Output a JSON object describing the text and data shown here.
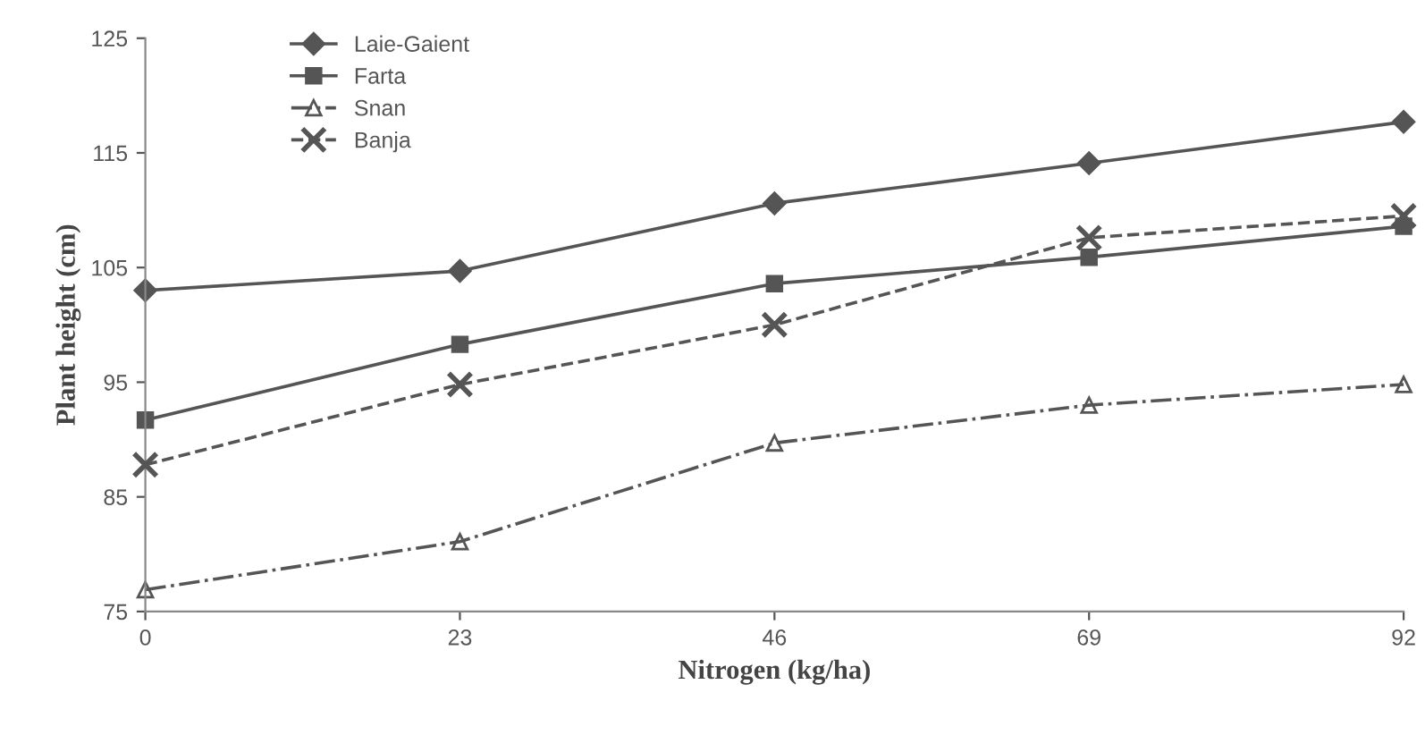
{
  "chart_data": {
    "type": "line",
    "xlabel": "Nitrogen (kg/ha)",
    "ylabel": "Plant height (cm)",
    "x": [
      0,
      23,
      46,
      69,
      92
    ],
    "series": [
      {
        "name": "Laie-Gaient",
        "color": "#555555",
        "marker": "diamond",
        "line_style": "solid",
        "values": [
          103,
          104.7,
          110.6,
          114.1,
          117.7
        ]
      },
      {
        "name": "Farta",
        "color": "#555555",
        "marker": "square",
        "line_style": "solid",
        "values": [
          91.7,
          98.3,
          103.6,
          105.9,
          108.6
        ]
      },
      {
        "name": "Snan",
        "color": "#555555",
        "marker": "triangle",
        "line_style": "dashdot",
        "values": [
          76.9,
          81.1,
          89.7,
          93,
          94.8
        ]
      },
      {
        "name": "Banja",
        "color": "#555555",
        "marker": "cross",
        "line_style": "dashed",
        "values": [
          87.8,
          94.8,
          100,
          107.6,
          109.5
        ]
      }
    ],
    "xlim": [
      0,
      92
    ],
    "xticks": [
      0,
      23,
      46,
      69,
      92
    ],
    "ylim": [
      75,
      125
    ],
    "yticks": [
      75,
      85,
      95,
      105,
      115,
      125
    ],
    "grid": false,
    "legend": "top left"
  }
}
